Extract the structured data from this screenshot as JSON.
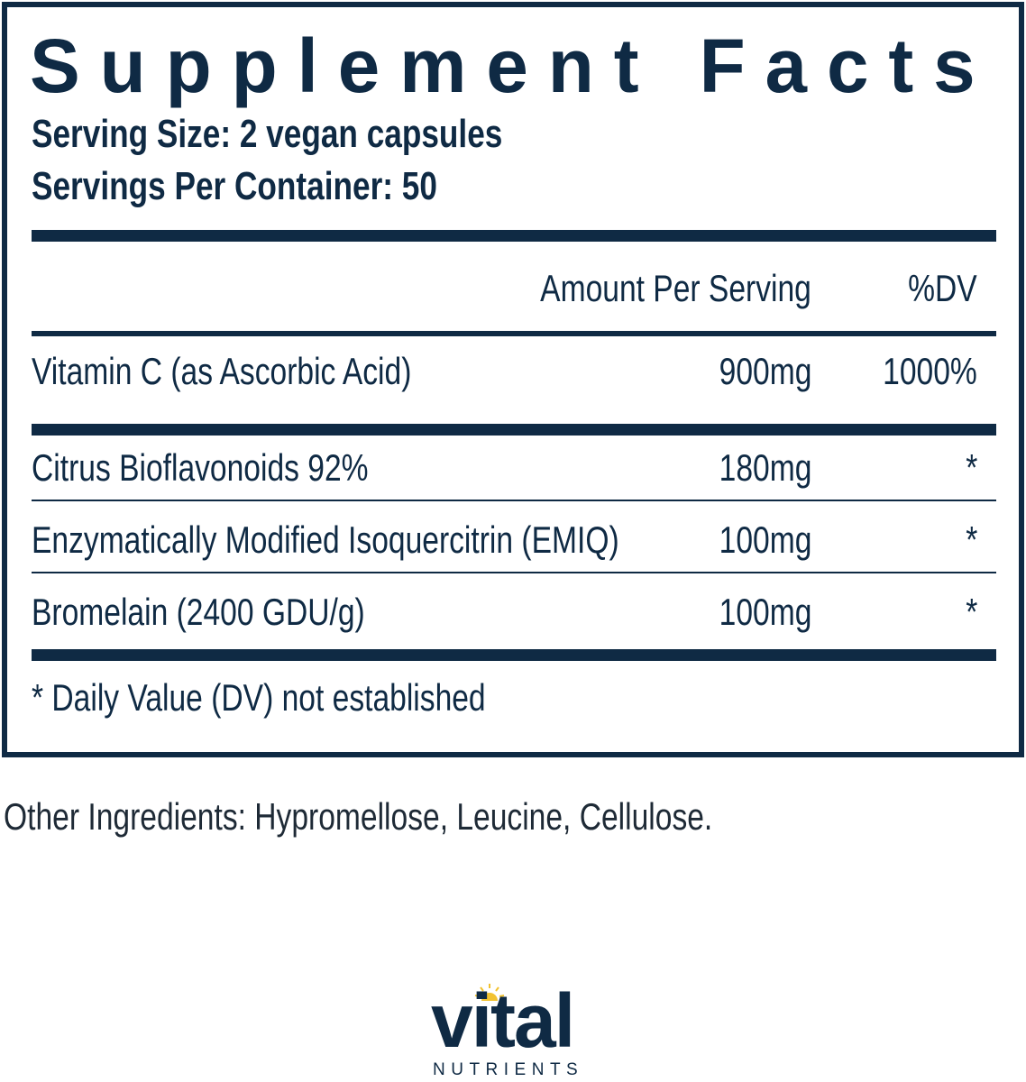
{
  "label": {
    "title": "Supplement Facts",
    "serving_size": "Serving Size: 2 vegan capsules",
    "servings_per_container": "Servings Per Container: 50",
    "header": {
      "amount": "Amount Per Serving",
      "dv": "%DV"
    },
    "rows": [
      {
        "name": "Vitamin C (as Ascorbic Acid)",
        "amount": "900mg",
        "dv": "1000%"
      },
      {
        "name": "Citrus Bioflavonoids 92%",
        "amount": "180mg",
        "dv": "*"
      },
      {
        "name": "Enzymatically Modified Isoquercitrin (EMIQ)",
        "amount": "100mg",
        "dv": "*"
      },
      {
        "name": "Bromelain (2400 GDU/g)",
        "amount": "100mg",
        "dv": "*"
      }
    ],
    "footnote": "* Daily Value (DV) not established"
  },
  "other_ingredients": "Other Ingredients: Hypromellose, Leucine, Cellulose.",
  "logo": {
    "word": "vital",
    "sub": "NUTRIENTS"
  },
  "colors": {
    "navy": "#0f2a44",
    "sun": "#f2c230"
  }
}
